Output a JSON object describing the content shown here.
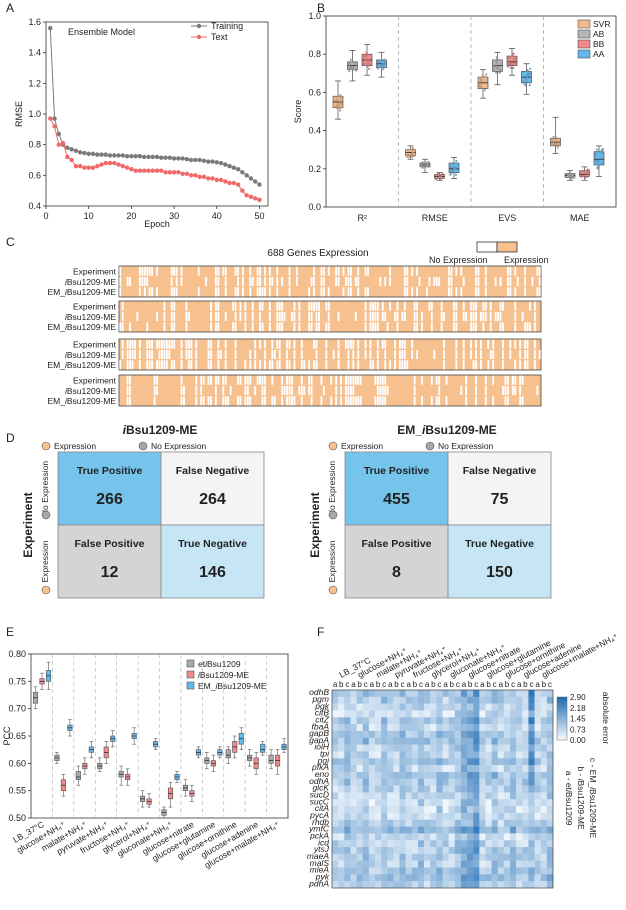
{
  "panel_letters": [
    "A",
    "B",
    "C",
    "D",
    "E",
    "F"
  ],
  "chart_data": [
    {
      "id": "A",
      "type": "line",
      "annotation": "Ensemble Model",
      "xlabel": "Epoch",
      "ylabel": "RMSE",
      "xlim": [
        0,
        52
      ],
      "ylim": [
        0.4,
        1.6
      ],
      "xticks": [
        0,
        10,
        20,
        30,
        40,
        50
      ],
      "yticks": [
        0.4,
        0.6,
        0.8,
        1.0,
        1.2,
        1.4,
        1.6
      ],
      "legend_position": "top-right",
      "series": [
        {
          "name": "Training",
          "color": "#7a7a7a",
          "x": [
            1,
            2,
            3,
            4,
            5,
            6,
            7,
            8,
            9,
            10,
            11,
            12,
            13,
            14,
            15,
            16,
            17,
            18,
            19,
            20,
            21,
            22,
            23,
            24,
            25,
            26,
            27,
            28,
            29,
            30,
            31,
            32,
            33,
            34,
            35,
            36,
            37,
            38,
            39,
            40,
            41,
            42,
            43,
            44,
            45,
            46,
            47,
            48,
            49,
            50
          ],
          "y": [
            1.56,
            0.97,
            0.87,
            0.8,
            0.78,
            0.77,
            0.76,
            0.75,
            0.745,
            0.74,
            0.74,
            0.735,
            0.735,
            0.735,
            0.73,
            0.73,
            0.73,
            0.73,
            0.725,
            0.725,
            0.725,
            0.725,
            0.72,
            0.72,
            0.72,
            0.72,
            0.715,
            0.715,
            0.715,
            0.71,
            0.71,
            0.71,
            0.705,
            0.7,
            0.7,
            0.7,
            0.695,
            0.69,
            0.69,
            0.685,
            0.68,
            0.67,
            0.66,
            0.65,
            0.64,
            0.62,
            0.6,
            0.58,
            0.56,
            0.54
          ]
        },
        {
          "name": "Text",
          "color": "#f06868",
          "x": [
            1,
            2,
            3,
            4,
            5,
            6,
            7,
            8,
            9,
            10,
            11,
            12,
            13,
            14,
            15,
            16,
            17,
            18,
            19,
            20,
            21,
            22,
            23,
            24,
            25,
            26,
            27,
            28,
            29,
            30,
            31,
            32,
            33,
            34,
            35,
            36,
            37,
            38,
            39,
            40,
            41,
            42,
            43,
            44,
            45,
            46,
            47,
            48,
            49,
            50
          ],
          "y": [
            0.97,
            0.92,
            0.8,
            0.81,
            0.72,
            0.7,
            0.66,
            0.66,
            0.65,
            0.65,
            0.65,
            0.66,
            0.67,
            0.68,
            0.68,
            0.68,
            0.67,
            0.66,
            0.65,
            0.64,
            0.63,
            0.63,
            0.63,
            0.63,
            0.63,
            0.63,
            0.63,
            0.62,
            0.62,
            0.62,
            0.62,
            0.61,
            0.61,
            0.6,
            0.6,
            0.59,
            0.59,
            0.58,
            0.58,
            0.57,
            0.57,
            0.56,
            0.55,
            0.55,
            0.54,
            0.5,
            0.47,
            0.46,
            0.45,
            0.44
          ]
        }
      ]
    },
    {
      "id": "B",
      "type": "box",
      "ylabel": "Score",
      "ylim": [
        0,
        1.0
      ],
      "yticks": [
        0.0,
        0.2,
        0.4,
        0.6,
        0.8,
        1.0
      ],
      "categories": [
        "R²",
        "RMSE",
        "EVS",
        "MAE"
      ],
      "legend_position": "top-right",
      "series": [
        {
          "name": "SVR",
          "color": "#f3b98a",
          "boxes": [
            {
              "q1": 0.52,
              "med": 0.55,
              "q3": 0.58,
              "lo": 0.46,
              "hi": 0.66
            },
            {
              "q1": 0.27,
              "med": 0.285,
              "q3": 0.3,
              "lo": 0.25,
              "hi": 0.32
            },
            {
              "q1": 0.62,
              "med": 0.65,
              "q3": 0.68,
              "lo": 0.57,
              "hi": 0.72
            },
            {
              "q1": 0.32,
              "med": 0.34,
              "q3": 0.36,
              "lo": 0.28,
              "hi": 0.47
            }
          ]
        },
        {
          "name": "AB",
          "color": "#b4b4b4",
          "boxes": [
            {
              "q1": 0.72,
              "med": 0.74,
              "q3": 0.76,
              "lo": 0.66,
              "hi": 0.82
            },
            {
              "q1": 0.21,
              "med": 0.22,
              "q3": 0.23,
              "lo": 0.18,
              "hi": 0.25
            },
            {
              "q1": 0.71,
              "med": 0.74,
              "q3": 0.77,
              "lo": 0.64,
              "hi": 0.81
            },
            {
              "q1": 0.155,
              "med": 0.165,
              "q3": 0.175,
              "lo": 0.14,
              "hi": 0.19
            }
          ]
        },
        {
          "name": "BB",
          "color": "#f08a8a",
          "boxes": [
            {
              "q1": 0.74,
              "med": 0.77,
              "q3": 0.8,
              "lo": 0.69,
              "hi": 0.85
            },
            {
              "q1": 0.15,
              "med": 0.16,
              "q3": 0.17,
              "lo": 0.14,
              "hi": 0.18
            },
            {
              "q1": 0.74,
              "med": 0.76,
              "q3": 0.79,
              "lo": 0.69,
              "hi": 0.83
            },
            {
              "q1": 0.16,
              "med": 0.17,
              "q3": 0.19,
              "lo": 0.14,
              "hi": 0.21
            }
          ]
        },
        {
          "name": "AA",
          "color": "#63b8ec",
          "boxes": [
            {
              "q1": 0.73,
              "med": 0.75,
              "q3": 0.77,
              "lo": 0.68,
              "hi": 0.81
            },
            {
              "q1": 0.18,
              "med": 0.2,
              "q3": 0.23,
              "lo": 0.15,
              "hi": 0.26
            },
            {
              "q1": 0.65,
              "med": 0.68,
              "q3": 0.71,
              "lo": 0.59,
              "hi": 0.75
            },
            {
              "q1": 0.22,
              "med": 0.25,
              "q3": 0.29,
              "lo": 0.16,
              "hi": 0.32
            }
          ]
        }
      ]
    },
    {
      "id": "C",
      "type": "heatmap",
      "title": "688 Genes Expression",
      "legend_labels": [
        "No Expression",
        "Expression"
      ],
      "colors": {
        "expression": "#f7c18f",
        "no_expression": "#ffffff"
      },
      "row_labels": [
        "Experiment",
        "iBsu1209-ME",
        "EM_iBsu1209-ME"
      ],
      "row_label_parts": [
        {
          "italic": "",
          "rest": "Experiment"
        },
        {
          "italic": "i",
          "rest": "Bsu1209-ME"
        },
        {
          "pre": "EM_",
          "italic": "i",
          "rest": "Bsu1209-ME"
        }
      ],
      "blocks": 4
    },
    {
      "id": "D",
      "type": "table",
      "matrices": [
        {
          "title_italic": "i",
          "title_rest": "Bsu1209-ME",
          "cells": [
            {
              "label": "True Positive",
              "value": "266",
              "color": "#74c4ec"
            },
            {
              "label": "False Negative",
              "value": "264",
              "color": "#f4f4f4"
            },
            {
              "label": "False Positive",
              "value": "12",
              "color": "#d4d4d4"
            },
            {
              "label": "True Negative",
              "value": "146",
              "color": "#c6e6f6"
            }
          ]
        },
        {
          "title_pre": "EM_",
          "title_italic": "i",
          "title_rest": "Bsu1209-ME",
          "cells": [
            {
              "label": "True Positive",
              "value": "455",
              "color": "#74c4ec"
            },
            {
              "label": "False Negative",
              "value": "75",
              "color": "#f4f4f4"
            },
            {
              "label": "False Positive",
              "value": "8",
              "color": "#d4d4d4"
            },
            {
              "label": "True Negative",
              "value": "150",
              "color": "#c6e6f6"
            }
          ]
        }
      ],
      "legend": [
        "Expression",
        "No Expression"
      ],
      "legend_colors": [
        "#f7c18f",
        "#a7a7a7"
      ],
      "row_axis_title": "Experiment",
      "row_labels": [
        "No Expression",
        "Expression"
      ]
    },
    {
      "id": "E",
      "type": "box",
      "ylabel": "PCC",
      "ylim": [
        0.5,
        0.8
      ],
      "yticks": [
        0.5,
        0.55,
        0.6,
        0.65,
        0.7,
        0.75,
        0.8
      ],
      "legend_position": "top-right",
      "categories": [
        "LB_37°C",
        "glucose+NH₄⁺",
        "malate+NH₄⁺",
        "pyruvate+NH₄⁺",
        "fructose+NH₄⁺",
        "glycerol+NH₄⁺",
        "gluconate+NH₄⁺",
        "glucose+nitrate",
        "glucose+glutamine",
        "glucose+ornithine",
        "glucose+adenine",
        "glucose+malate+NH₄⁺"
      ],
      "series": [
        {
          "name_pre": "et",
          "name_italic": "i",
          "name_rest": "Bsu1209",
          "name": "etiBsu1209",
          "color": "#a9a9a9",
          "boxes": [
            {
              "q1": 0.71,
              "med": 0.72,
              "q3": 0.73,
              "lo": 0.7,
              "hi": 0.74
            },
            {
              "q1": 0.605,
              "med": 0.61,
              "q3": 0.615,
              "lo": 0.6,
              "hi": 0.62
            },
            {
              "q1": 0.57,
              "med": 0.575,
              "q3": 0.585,
              "lo": 0.56,
              "hi": 0.595
            },
            {
              "q1": 0.59,
              "med": 0.595,
              "q3": 0.6,
              "lo": 0.585,
              "hi": 0.61
            },
            {
              "q1": 0.575,
              "med": 0.58,
              "q3": 0.585,
              "lo": 0.56,
              "hi": 0.595
            },
            {
              "q1": 0.53,
              "med": 0.535,
              "q3": 0.54,
              "lo": 0.52,
              "hi": 0.55
            },
            {
              "q1": 0.505,
              "med": 0.51,
              "q3": 0.515,
              "lo": 0.5,
              "hi": 0.52
            },
            {
              "q1": 0.55,
              "med": 0.555,
              "q3": 0.56,
              "lo": 0.54,
              "hi": 0.57
            },
            {
              "q1": 0.6,
              "med": 0.605,
              "q3": 0.61,
              "lo": 0.59,
              "hi": 0.62
            },
            {
              "q1": 0.61,
              "med": 0.615,
              "q3": 0.625,
              "lo": 0.6,
              "hi": 0.63
            },
            {
              "q1": 0.605,
              "med": 0.61,
              "q3": 0.615,
              "lo": 0.595,
              "hi": 0.625
            },
            {
              "q1": 0.6,
              "med": 0.605,
              "q3": 0.615,
              "lo": 0.59,
              "hi": 0.625
            }
          ]
        },
        {
          "name_pre": "",
          "name_italic": "i",
          "name_rest": "Bsu1209-ME",
          "name": "iBsu1209-ME",
          "color": "#f08a8a",
          "boxes": [
            {
              "q1": 0.745,
              "med": 0.75,
              "q3": 0.755,
              "lo": 0.735,
              "hi": 0.765
            },
            {
              "q1": 0.55,
              "med": 0.56,
              "q3": 0.57,
              "lo": 0.54,
              "hi": 0.58
            },
            {
              "q1": 0.59,
              "med": 0.595,
              "q3": 0.6,
              "lo": 0.58,
              "hi": 0.61
            },
            {
              "q1": 0.61,
              "med": 0.62,
              "q3": 0.63,
              "lo": 0.6,
              "hi": 0.64
            },
            {
              "q1": 0.57,
              "med": 0.575,
              "q3": 0.58,
              "lo": 0.56,
              "hi": 0.59
            },
            {
              "q1": 0.525,
              "med": 0.53,
              "q3": 0.535,
              "lo": 0.52,
              "hi": 0.545
            },
            {
              "q1": 0.535,
              "med": 0.545,
              "q3": 0.555,
              "lo": 0.52,
              "hi": 0.565
            },
            {
              "q1": 0.54,
              "med": 0.545,
              "q3": 0.55,
              "lo": 0.53,
              "hi": 0.56
            },
            {
              "q1": 0.595,
              "med": 0.6,
              "q3": 0.605,
              "lo": 0.585,
              "hi": 0.615
            },
            {
              "q1": 0.62,
              "med": 0.63,
              "q3": 0.64,
              "lo": 0.61,
              "hi": 0.65
            },
            {
              "q1": 0.59,
              "med": 0.6,
              "q3": 0.61,
              "lo": 0.58,
              "hi": 0.62
            },
            {
              "q1": 0.595,
              "med": 0.605,
              "q3": 0.615,
              "lo": 0.58,
              "hi": 0.625
            }
          ]
        },
        {
          "name_pre": "EM_",
          "name_italic": "i",
          "name_rest": "Bsu1209-ME",
          "name": "EM_iBsu1209-ME",
          "color": "#63b8ec",
          "boxes": [
            {
              "q1": 0.75,
              "med": 0.76,
              "q3": 0.77,
              "lo": 0.735,
              "hi": 0.785
            },
            {
              "q1": 0.66,
              "med": 0.665,
              "q3": 0.67,
              "lo": 0.65,
              "hi": 0.68
            },
            {
              "q1": 0.62,
              "med": 0.625,
              "q3": 0.63,
              "lo": 0.61,
              "hi": 0.64
            },
            {
              "q1": 0.64,
              "med": 0.645,
              "q3": 0.65,
              "lo": 0.63,
              "hi": 0.66
            },
            {
              "q1": 0.645,
              "med": 0.65,
              "q3": 0.655,
              "lo": 0.635,
              "hi": 0.665
            },
            {
              "q1": 0.63,
              "med": 0.635,
              "q3": 0.64,
              "lo": 0.625,
              "hi": 0.645
            },
            {
              "q1": 0.57,
              "med": 0.575,
              "q3": 0.58,
              "lo": 0.565,
              "hi": 0.585
            },
            {
              "q1": 0.615,
              "med": 0.62,
              "q3": 0.625,
              "lo": 0.61,
              "hi": 0.63
            },
            {
              "q1": 0.615,
              "med": 0.62,
              "q3": 0.625,
              "lo": 0.61,
              "hi": 0.63
            },
            {
              "q1": 0.635,
              "med": 0.645,
              "q3": 0.655,
              "lo": 0.625,
              "hi": 0.665
            },
            {
              "q1": 0.62,
              "med": 0.625,
              "q3": 0.635,
              "lo": 0.615,
              "hi": 0.64
            },
            {
              "q1": 0.625,
              "med": 0.63,
              "q3": 0.635,
              "lo": 0.62,
              "hi": 0.645
            }
          ]
        }
      ]
    },
    {
      "id": "F",
      "type": "heatmap",
      "colorbar_title": "absolute error",
      "colorbar_ticks": [
        "2.90",
        "2.18",
        "1.45",
        "0.73",
        "0.00"
      ],
      "colorbar_range": [
        0.0,
        2.9
      ],
      "column_groups": [
        "LB_37°C",
        "glucose+NH₄⁺",
        "malate+NH₄⁺",
        "pyruvate+NH₄⁺",
        "fructose+NH₄⁺",
        "glycerol+NH₄⁺",
        "gluconate+NH₄⁺",
        "glucose+nitrate",
        "glucose+glutamine",
        "glucose+ornithine",
        "glucose+adenine",
        "glucose+malate+NH₄⁺"
      ],
      "sub_columns": [
        "a",
        "b",
        "c"
      ],
      "genes": [
        "odhB",
        "pgm",
        "pgk",
        "citB",
        "citZ",
        "fbaA",
        "gapB",
        "gapA",
        "iolH",
        "tpi",
        "pgi",
        "pfkA",
        "eno",
        "odhA",
        "glcK",
        "sucD",
        "sucC",
        "citA",
        "pycA",
        "rhdb",
        "ymfC",
        "pckA",
        "icd",
        "ytsJ",
        "maeA",
        "malS",
        "mleA",
        "pyk",
        "pdhA"
      ],
      "key": [
        {
          "pre": "a - et",
          "italic": "i",
          "rest": "Bsu1209"
        },
        {
          "pre": "b - ",
          "italic": "i",
          "rest": "Bsu1209-ME"
        },
        {
          "pre": "c - EM_",
          "italic": "i",
          "rest": "Bsu1209-ME"
        }
      ]
    }
  ]
}
